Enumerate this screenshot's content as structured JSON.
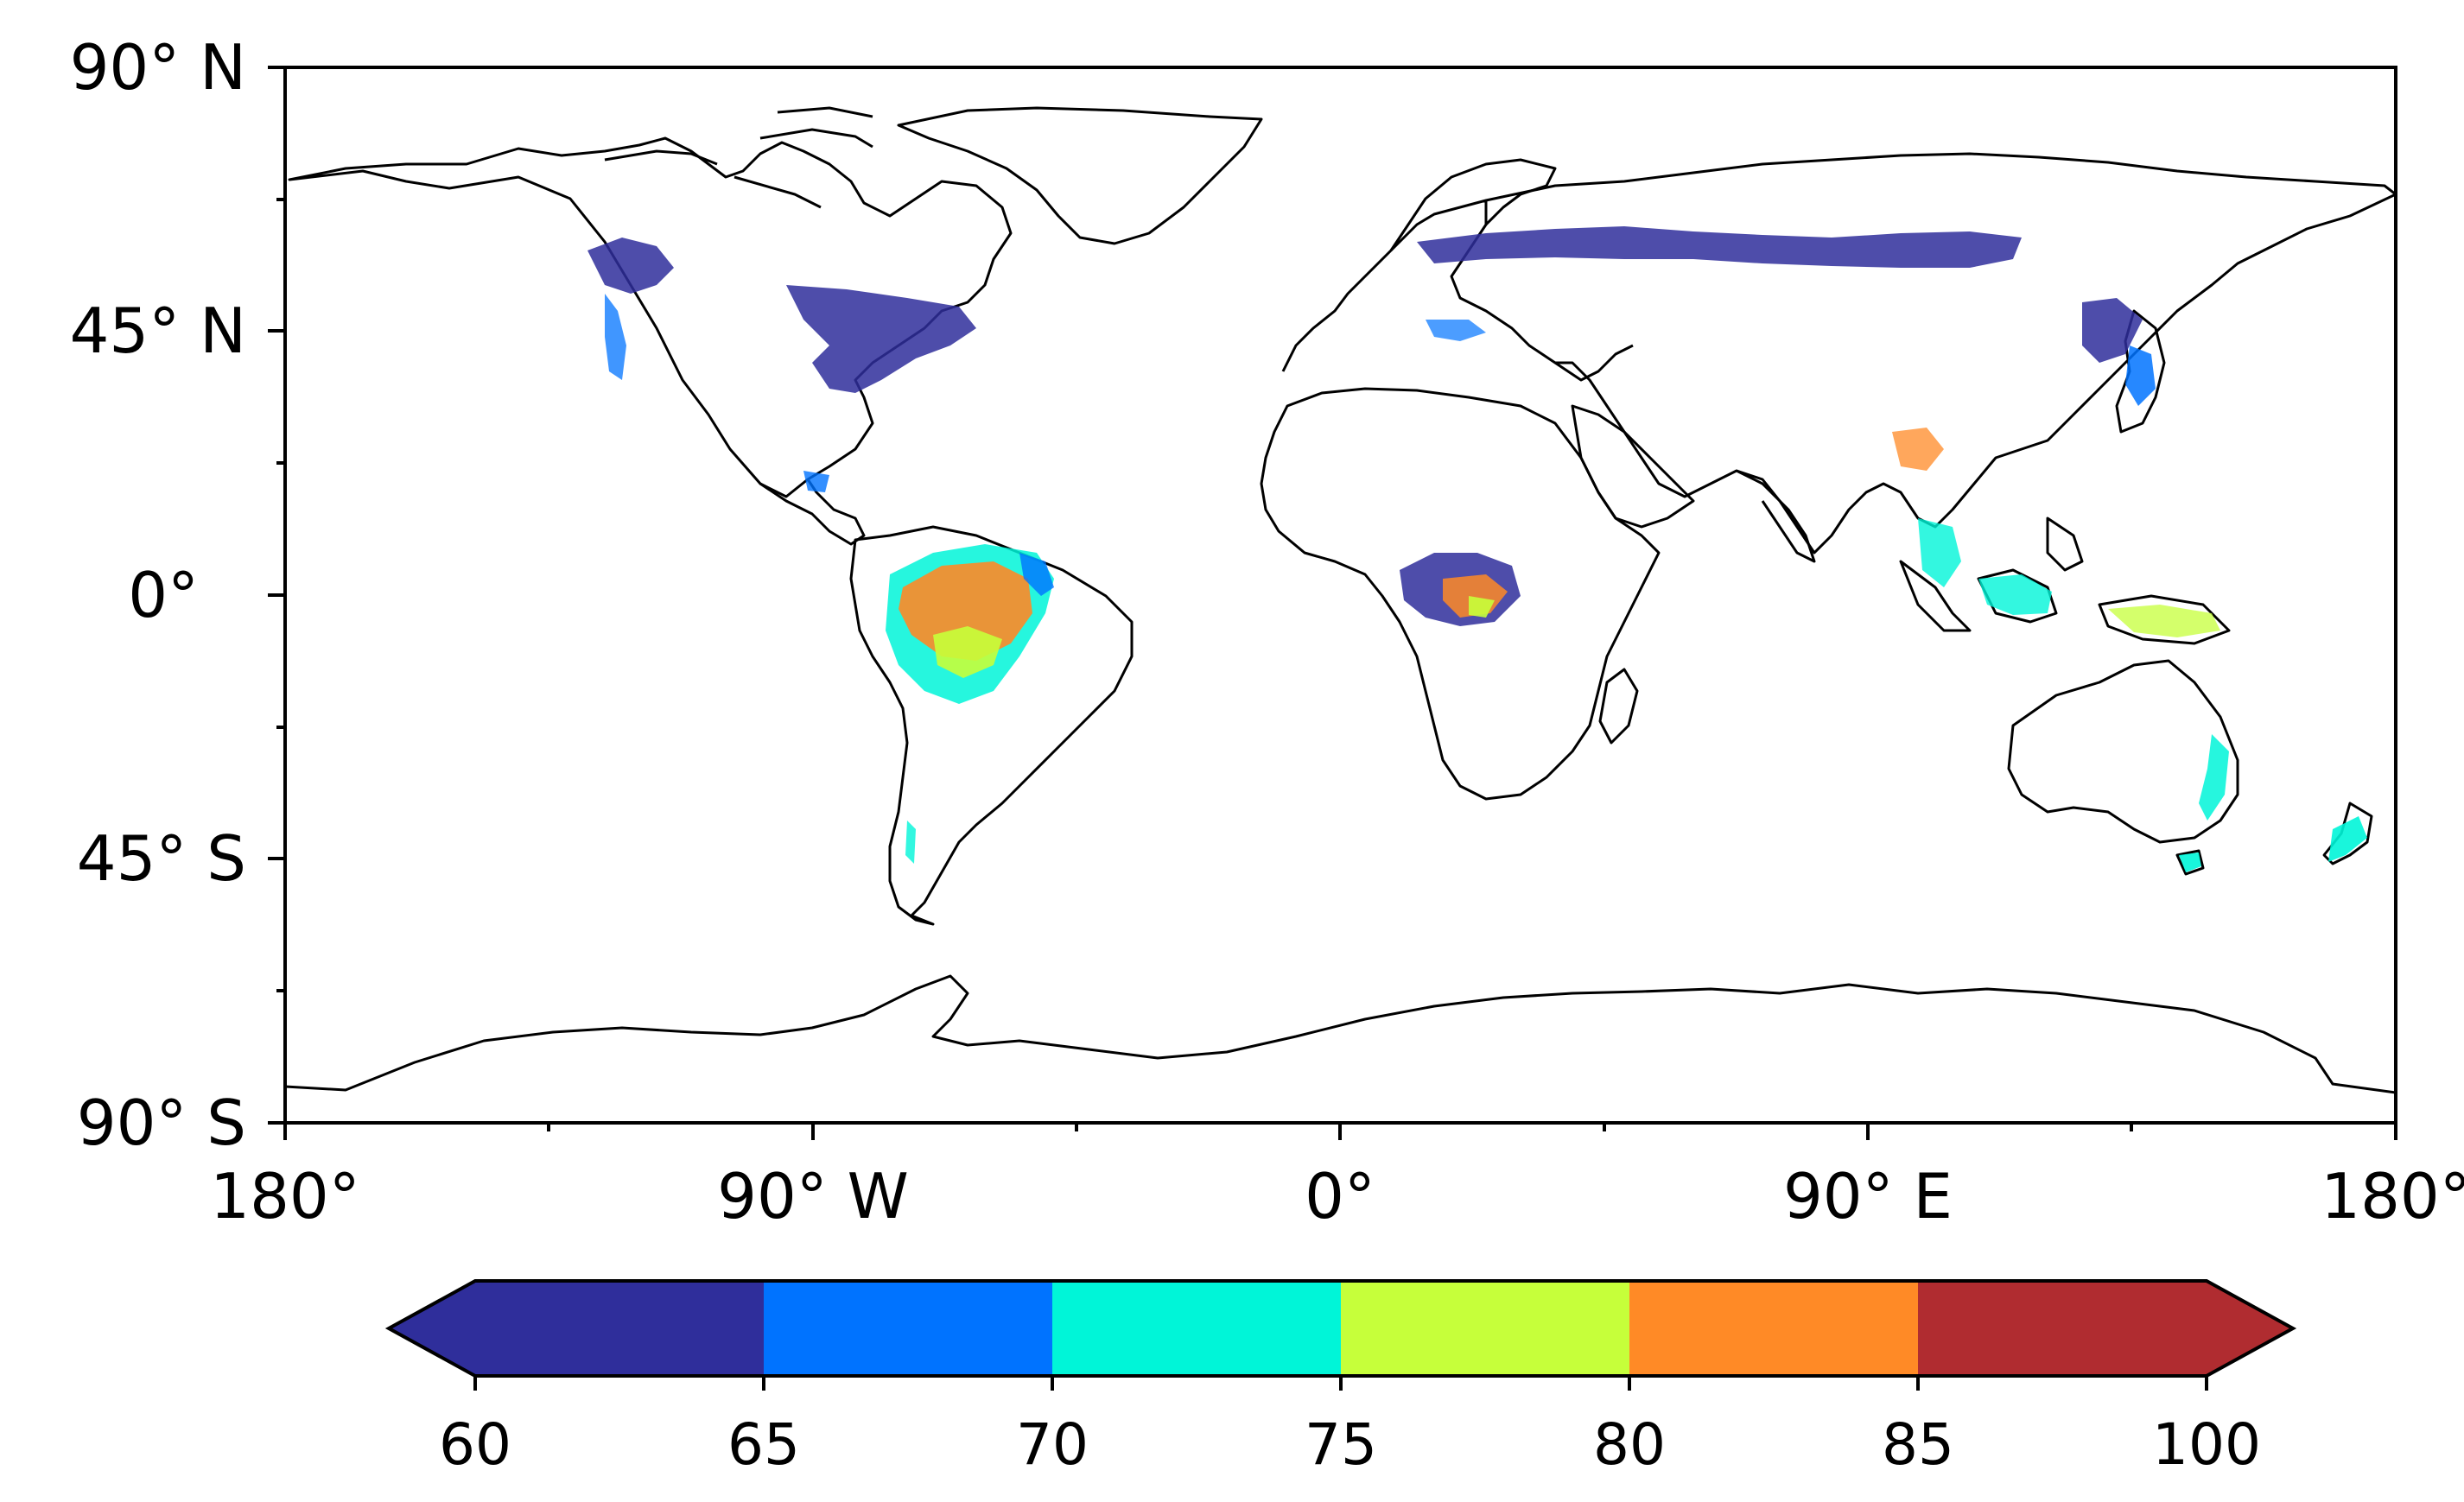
{
  "map": {
    "lat_labels": [
      "90° N",
      "45° N",
      "0°",
      "45° S",
      "90° S"
    ],
    "lon_labels": [
      "180°",
      "90° W",
      "0°",
      "90° E",
      "180°"
    ],
    "extent": {
      "lon": [
        -180,
        180
      ],
      "lat": [
        -90,
        90
      ]
    },
    "projection": "equirectangular",
    "background": "#ffffff",
    "coastline_color": "#000000"
  },
  "colorbar": {
    "labels": [
      "60",
      "65",
      "70",
      "75",
      "80",
      "85",
      "100"
    ],
    "extend": "both",
    "bins": [
      {
        "from": 60,
        "to": 65,
        "color": "#2f2e9b"
      },
      {
        "from": 65,
        "to": 70,
        "color": "#0073ff"
      },
      {
        "from": 70,
        "to": 75,
        "color": "#00f5d8"
      },
      {
        "from": 75,
        "to": 80,
        "color": "#c6ff3a"
      },
      {
        "from": 80,
        "to": 85,
        "color": "#ff8a26"
      },
      {
        "from": 85,
        "to": 100,
        "color": "#b02c30"
      }
    ]
  }
}
